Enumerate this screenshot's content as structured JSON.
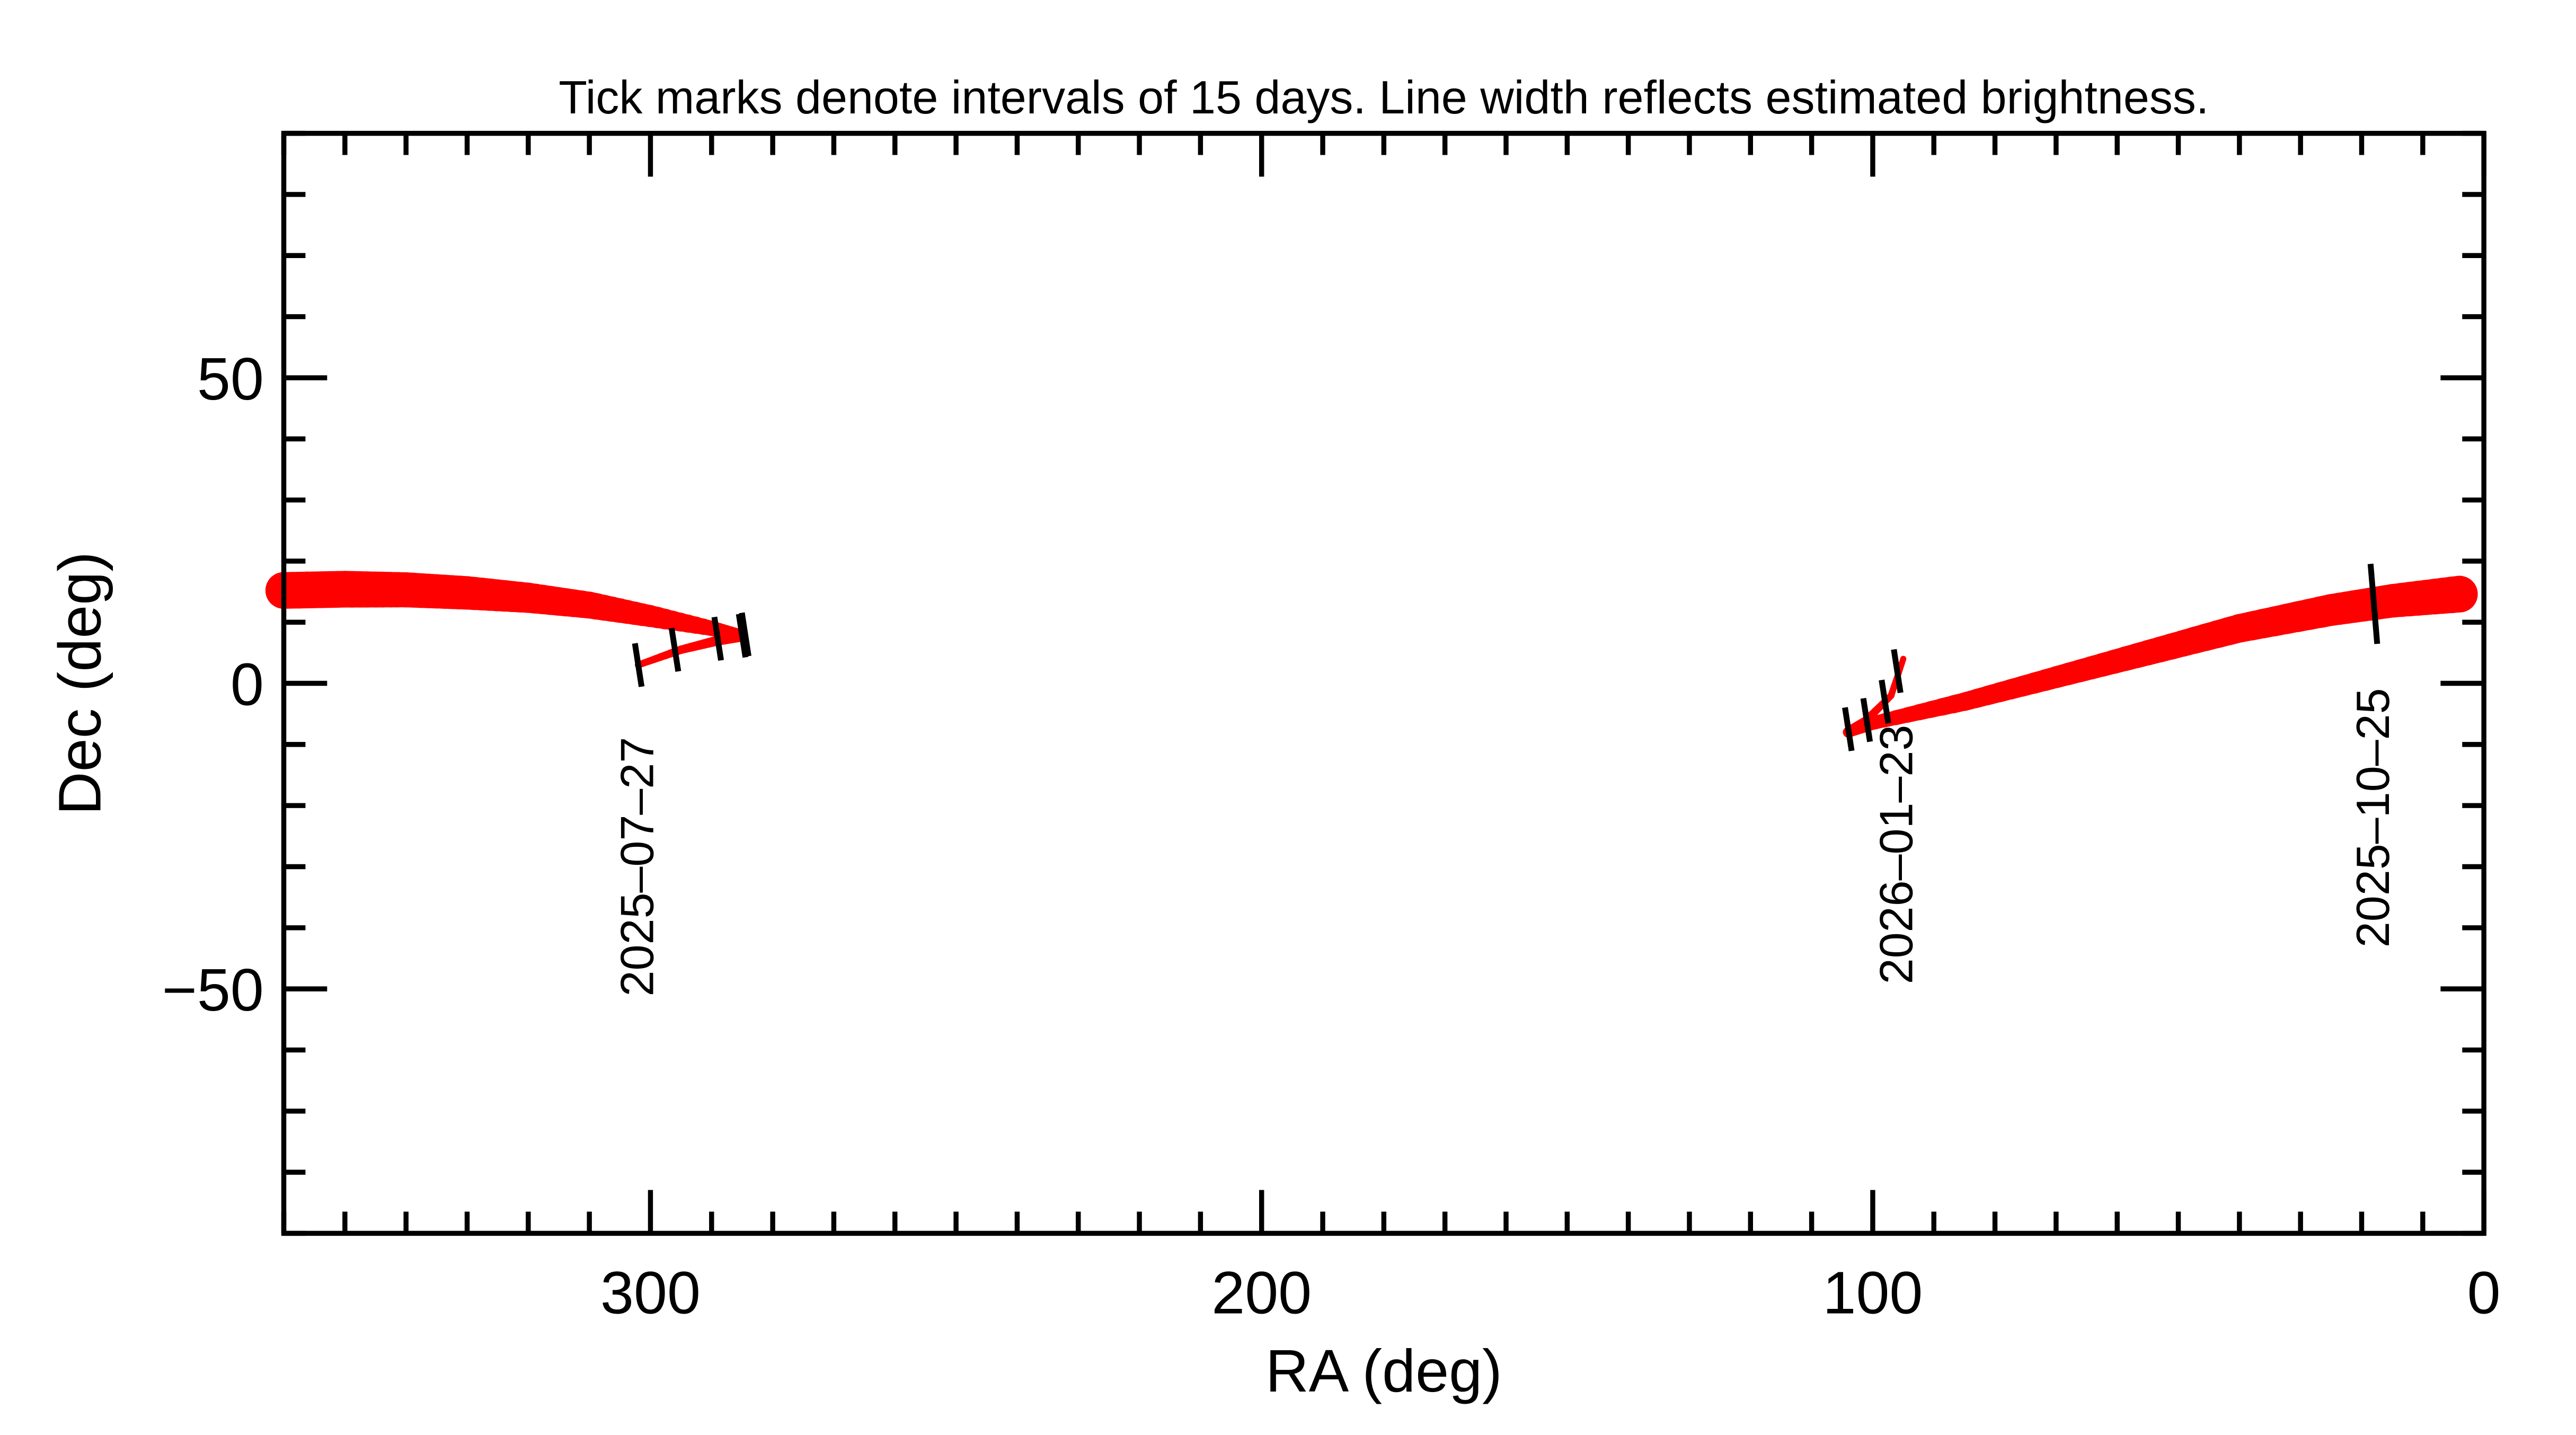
{
  "chart_data": {
    "type": "line",
    "title": "Tick marks denote intervals of 15 days.  Line width reflects estimated brightness.",
    "xlabel": "RA (deg)",
    "ylabel": "Dec (deg)",
    "xlim": [
      360,
      0
    ],
    "ylim": [
      -90,
      90
    ],
    "x_ticks": [
      300,
      200,
      100,
      0
    ],
    "x_tick_labels": [
      "300",
      "200",
      "100",
      "0"
    ],
    "y_ticks": [
      50,
      0,
      -50
    ],
    "y_tick_labels": [
      "50",
      "0",
      "−50"
    ],
    "x_minor_step": 10,
    "y_minor_step": 10,
    "grid": false,
    "line_color": "#ff0000",
    "tick_color": "#000000",
    "series": [
      {
        "points_ra_dec_brightness": [
          [
            302,
            3,
            0.1
          ],
          [
            295,
            5.5,
            0.15
          ],
          [
            289,
            7,
            0.2
          ],
          [
            285,
            7.8,
            0.25
          ],
          [
            290,
            9,
            0.35
          ],
          [
            300,
            11,
            0.55
          ],
          [
            310,
            12.8,
            0.7
          ],
          [
            320,
            14,
            0.8
          ],
          [
            330,
            14.8,
            0.9
          ],
          [
            340,
            15.3,
            0.95
          ],
          [
            350,
            15.4,
            1.0
          ],
          [
            360,
            15.2,
            1.0
          ]
        ]
      },
      {
        "points_ra_dec_brightness": [
          [
            4,
            14.6,
            1.0
          ],
          [
            15,
            13.5,
            0.9
          ],
          [
            25,
            12,
            0.85
          ],
          [
            40,
            9,
            0.75
          ],
          [
            55,
            5,
            0.65
          ],
          [
            70,
            1,
            0.55
          ],
          [
            85,
            -3,
            0.45
          ],
          [
            100,
            -6.5,
            0.3
          ],
          [
            104,
            -8,
            0.22
          ],
          [
            101,
            -6,
            0.15
          ],
          [
            97,
            -2,
            0.1
          ],
          [
            95,
            4,
            0.08
          ]
        ]
      }
    ],
    "date_ticks": [
      [
        302,
        3
      ],
      [
        296,
        5.5
      ],
      [
        289,
        7.3
      ],
      [
        285,
        7.8
      ],
      [
        284.5,
        8
      ],
      [
        18,
        13
      ],
      [
        104,
        -7.5
      ],
      [
        101,
        -6
      ],
      [
        98,
        -3
      ],
      [
        96,
        2
      ]
    ],
    "date_labels": [
      {
        "text": "2025–07–27",
        "ra": 302,
        "dec": -30
      },
      {
        "text": "2026–01–23",
        "ra": 96,
        "dec": -28
      },
      {
        "text": "2025–10–25",
        "ra": 18,
        "dec": -22
      }
    ]
  }
}
